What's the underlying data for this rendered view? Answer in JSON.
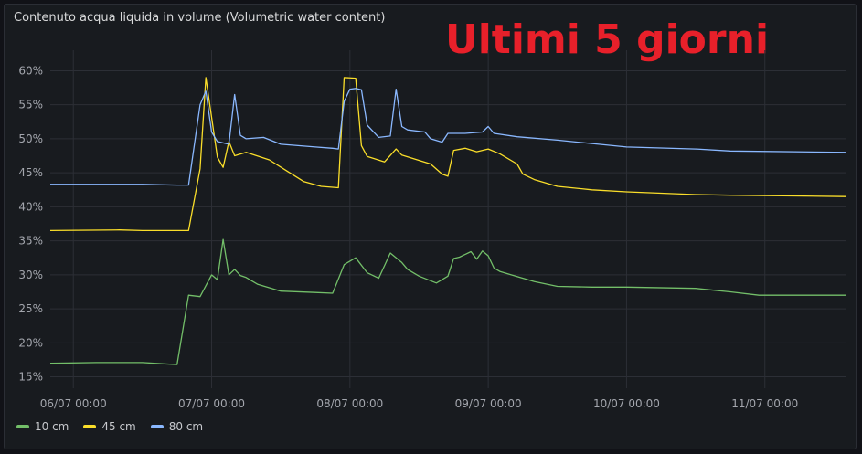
{
  "panel": {
    "title": "Contenuto acqua liquida in volume (Volumetric water content)",
    "overlay_text": "Ultimi 5 giorni",
    "overlay_color": "#e8202a"
  },
  "chart_data": {
    "type": "line",
    "title": "Contenuto acqua liquida in volume (Volumetric water content)",
    "xlabel": "",
    "ylabel": "",
    "ylim": [
      14,
      61
    ],
    "xlim": [
      "2025-07-05 20:00",
      "2025-07-11 14:00"
    ],
    "grid": true,
    "legend_position": "bottom-left",
    "y_ticks": [
      "15%",
      "20%",
      "25%",
      "30%",
      "35%",
      "40%",
      "45%",
      "50%",
      "55%",
      "60%"
    ],
    "x_ticks": [
      "06/07 00:00",
      "07/07 00:00",
      "08/07 00:00",
      "09/07 00:00",
      "10/07 00:00",
      "11/07 00:00"
    ],
    "series": [
      {
        "name": "10 cm",
        "color": "#73bf69",
        "x": [
          "2025-07-05 20:00",
          "2025-07-06 04:00",
          "2025-07-06 12:00",
          "2025-07-06 14:00",
          "2025-07-06 18:00",
          "2025-07-06 20:00",
          "2025-07-06 22:00",
          "2025-07-07 00:00",
          "2025-07-07 01:00",
          "2025-07-07 02:00",
          "2025-07-07 03:00",
          "2025-07-07 04:00",
          "2025-07-07 05:00",
          "2025-07-07 06:00",
          "2025-07-07 08:00",
          "2025-07-07 12:00",
          "2025-07-07 18:00",
          "2025-07-07 21:00",
          "2025-07-07 23:00",
          "2025-07-08 01:00",
          "2025-07-08 03:00",
          "2025-07-08 05:00",
          "2025-07-08 07:00",
          "2025-07-08 09:00",
          "2025-07-08 10:00",
          "2025-07-08 12:00",
          "2025-07-08 15:00",
          "2025-07-08 17:00",
          "2025-07-08 18:00",
          "2025-07-08 19:00",
          "2025-07-08 21:00",
          "2025-07-08 22:00",
          "2025-07-08 23:00",
          "2025-07-09 00:00",
          "2025-07-09 01:00",
          "2025-07-09 02:00",
          "2025-07-09 04:00",
          "2025-07-09 08:00",
          "2025-07-09 12:00",
          "2025-07-09 18:00",
          "2025-07-10 00:00",
          "2025-07-10 12:00",
          "2025-07-10 18:00",
          "2025-07-10 23:00",
          "2025-07-11 14:00"
        ],
        "values": [
          17.0,
          17.1,
          17.1,
          17.0,
          16.8,
          27.0,
          26.8,
          30.0,
          29.3,
          35.2,
          30.0,
          30.8,
          29.9,
          29.6,
          28.6,
          27.6,
          27.4,
          27.3,
          31.5,
          32.5,
          30.3,
          29.5,
          33.2,
          31.8,
          30.8,
          29.8,
          28.8,
          29.8,
          32.4,
          32.6,
          33.4,
          32.3,
          33.5,
          32.8,
          31.0,
          30.5,
          30.0,
          29.0,
          28.3,
          28.2,
          28.2,
          28.0,
          27.5,
          27.0,
          27.0
        ]
      },
      {
        "name": "45 cm",
        "color": "#fade2a",
        "x": [
          "2025-07-05 20:00",
          "2025-07-06 08:00",
          "2025-07-06 12:00",
          "2025-07-06 20:00",
          "2025-07-06 22:00",
          "2025-07-06 23:00",
          "2025-07-07 01:00",
          "2025-07-07 02:00",
          "2025-07-07 03:00",
          "2025-07-07 04:00",
          "2025-07-07 06:00",
          "2025-07-07 10:00",
          "2025-07-07 13:00",
          "2025-07-07 16:00",
          "2025-07-07 19:00",
          "2025-07-07 22:00",
          "2025-07-07 23:00",
          "2025-07-08 01:00",
          "2025-07-08 02:00",
          "2025-07-08 03:00",
          "2025-07-08 06:00",
          "2025-07-08 08:00",
          "2025-07-08 09:00",
          "2025-07-08 14:00",
          "2025-07-08 16:00",
          "2025-07-08 17:00",
          "2025-07-08 18:00",
          "2025-07-08 20:00",
          "2025-07-08 22:00",
          "2025-07-09 00:00",
          "2025-07-09 02:00",
          "2025-07-09 05:00",
          "2025-07-09 06:00",
          "2025-07-09 08:00",
          "2025-07-09 12:00",
          "2025-07-09 18:00",
          "2025-07-10 00:00",
          "2025-07-10 12:00",
          "2025-07-10 18:00",
          "2025-07-11 14:00"
        ],
        "values": [
          36.5,
          36.6,
          36.5,
          36.5,
          45.6,
          59.0,
          47.3,
          45.8,
          49.6,
          47.5,
          48.0,
          46.9,
          45.3,
          43.7,
          43.0,
          42.8,
          59.0,
          58.9,
          49.0,
          47.4,
          46.6,
          48.5,
          47.6,
          46.3,
          44.8,
          44.5,
          48.3,
          48.6,
          48.1,
          48.5,
          47.8,
          46.3,
          44.8,
          44.0,
          43.0,
          42.5,
          42.2,
          41.8,
          41.7,
          41.5
        ]
      },
      {
        "name": "80 cm",
        "color": "#8ab8ff",
        "x": [
          "2025-07-05 20:00",
          "2025-07-06 12:00",
          "2025-07-06 18:00",
          "2025-07-06 20:00",
          "2025-07-06 22:00",
          "2025-07-06 23:00",
          "2025-07-07 00:00",
          "2025-07-07 01:00",
          "2025-07-07 03:00",
          "2025-07-07 04:00",
          "2025-07-07 05:00",
          "2025-07-07 06:00",
          "2025-07-07 09:00",
          "2025-07-07 12:00",
          "2025-07-07 18:00",
          "2025-07-07 21:00",
          "2025-07-07 22:00",
          "2025-07-07 23:00",
          "2025-07-08 00:00",
          "2025-07-08 01:00",
          "2025-07-08 02:00",
          "2025-07-08 03:00",
          "2025-07-08 05:00",
          "2025-07-08 07:00",
          "2025-07-08 08:00",
          "2025-07-08 09:00",
          "2025-07-08 10:00",
          "2025-07-08 13:00",
          "2025-07-08 14:00",
          "2025-07-08 16:00",
          "2025-07-08 17:00",
          "2025-07-08 20:00",
          "2025-07-08 23:00",
          "2025-07-09 00:00",
          "2025-07-09 01:00",
          "2025-07-09 05:00",
          "2025-07-09 12:00",
          "2025-07-10 00:00",
          "2025-07-10 12:00",
          "2025-07-10 18:00",
          "2025-07-11 14:00"
        ],
        "values": [
          43.3,
          43.3,
          43.2,
          43.2,
          55.0,
          57.0,
          51.0,
          49.6,
          49.2,
          56.5,
          50.5,
          50.0,
          50.2,
          49.2,
          48.8,
          48.6,
          48.5,
          55.5,
          57.3,
          57.4,
          57.2,
          52.0,
          50.2,
          50.4,
          57.3,
          51.8,
          51.3,
          51.0,
          50.0,
          49.5,
          50.8,
          50.8,
          51.0,
          51.8,
          50.8,
          50.3,
          49.8,
          48.8,
          48.5,
          48.2,
          48.0
        ]
      }
    ]
  }
}
